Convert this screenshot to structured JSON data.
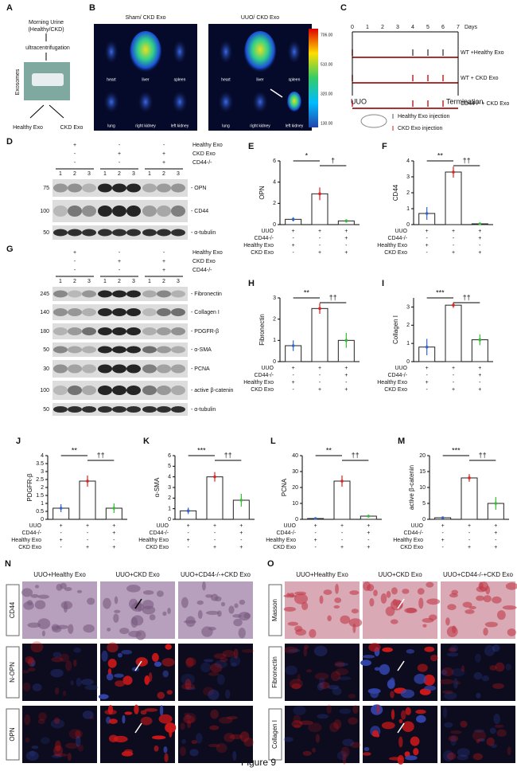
{
  "A": {
    "label": "A",
    "urine": [
      "Morning Urine",
      "(Healthy/CKD)"
    ],
    "step": "ultracentrifugation",
    "side": "Exosomes",
    "outputs": [
      "Healthy Exo",
      "CKD Exo"
    ]
  },
  "B": {
    "label": "B",
    "groups": [
      "Sham/ CKD Exo",
      "UUO/ CKD Exo"
    ],
    "organs": [
      "heart",
      "liver",
      "spleen",
      "lung",
      "right kidney",
      "left kidney"
    ],
    "scale": [
      "706.00",
      "510.00",
      "320.00",
      "130.00"
    ]
  },
  "C": {
    "label": "C",
    "days": [
      "0",
      "1",
      "2",
      "3",
      "4",
      "5",
      "6",
      "7"
    ],
    "days_unit": "Days",
    "groups": [
      "WT +Healthy Exo",
      "WT + CKD Exo",
      "CD44-/- + CKD Exo"
    ],
    "start": "UUO",
    "end": "Termination",
    "legend": [
      "Healthy Exo injection",
      "CKD Exo injection"
    ]
  },
  "D": {
    "label": "D",
    "markers": [
      {
        "mw": "75",
        "name": "- OPN"
      },
      {
        "mw": "100",
        "name": "- CD44"
      },
      {
        "mw": "50",
        "name": "- α-tubulin"
      }
    ]
  },
  "G": {
    "label": "G",
    "markers": [
      {
        "mw": "245",
        "name": "- Fibronectin"
      },
      {
        "mw": "140",
        "name": "- Collagen I"
      },
      {
        "mw": "180",
        "name": "- PDGFR-β"
      },
      {
        "mw": "50",
        "name": "- α-SMA"
      },
      {
        "mw": "30",
        "name": "- PCNA"
      },
      {
        "mw": "100",
        "name": "- active β-catenin"
      },
      {
        "mw": "50",
        "name": "- α-tubulin"
      }
    ]
  },
  "blot_conditions": {
    "labels": [
      "Healthy Exo",
      "CKD Exo",
      "CD44-/-"
    ],
    "signs": [
      [
        "+",
        "-",
        "-"
      ],
      [
        "-",
        "+",
        "+"
      ],
      [
        "-",
        "-",
        "+"
      ]
    ],
    "lanes": [
      "1",
      "2",
      "3"
    ]
  },
  "charts": [
    {
      "label": "E",
      "ylabel": "OPN",
      "ylim": [
        0,
        6
      ],
      "yticks": [
        0,
        2,
        4,
        6
      ],
      "values": [
        0.5,
        2.9,
        0.35
      ],
      "errors": [
        0.2,
        0.6,
        0.15
      ],
      "significance": [
        "*",
        "†"
      ]
    },
    {
      "label": "F",
      "ylabel": "CD44",
      "ylim": [
        0,
        4
      ],
      "yticks": [
        0,
        1,
        2,
        3,
        4
      ],
      "values": [
        0.7,
        3.3,
        0.05
      ],
      "errors": [
        0.4,
        0.35,
        0.05
      ],
      "significance": [
        "**",
        "††"
      ]
    },
    {
      "label": "H",
      "ylabel": "Fibronectin",
      "ylim": [
        0,
        3
      ],
      "yticks": [
        0,
        1,
        2,
        3
      ],
      "values": [
        0.75,
        2.5,
        1.0
      ],
      "errors": [
        0.25,
        0.25,
        0.35
      ],
      "significance": [
        "**",
        "††"
      ]
    },
    {
      "label": "I",
      "ylabel": "Collagen I",
      "ylim": [
        0,
        3.5
      ],
      "yticks": [
        0,
        1,
        2,
        3
      ],
      "values": [
        0.8,
        3.1,
        1.2
      ],
      "errors": [
        0.45,
        0.15,
        0.3
      ],
      "significance": [
        "***",
        "††"
      ]
    },
    {
      "label": "J",
      "ylabel": "PDGFR-β",
      "ylim": [
        0,
        4
      ],
      "yticks": [
        0,
        0.5,
        1,
        1.5,
        2,
        2.5,
        3,
        3.5,
        4
      ],
      "values": [
        0.7,
        2.4,
        0.7
      ],
      "errors": [
        0.25,
        0.35,
        0.3
      ],
      "significance": [
        "**",
        "††"
      ]
    },
    {
      "label": "K",
      "ylabel": "α-SMA",
      "ylim": [
        0,
        6
      ],
      "yticks": [
        0,
        1,
        2,
        3,
        4,
        5,
        6
      ],
      "values": [
        0.8,
        4,
        1.8
      ],
      "errors": [
        0.3,
        0.45,
        0.6
      ],
      "significance": [
        "***",
        "††"
      ]
    },
    {
      "label": "L",
      "ylabel": "PCNA",
      "ylim": [
        0,
        40
      ],
      "yticks": [
        0,
        10,
        20,
        30,
        40
      ],
      "values": [
        0.5,
        24,
        2
      ],
      "errors": [
        0.3,
        3.5,
        0.8
      ],
      "significance": [
        "**",
        "††"
      ]
    },
    {
      "label": "M",
      "ylabel": "active β-catenin",
      "ylim": [
        0,
        20
      ],
      "yticks": [
        0,
        5,
        10,
        15,
        20
      ],
      "values": [
        0.5,
        13,
        5
      ],
      "errors": [
        0.3,
        1.2,
        2
      ],
      "significance": [
        "***",
        "††"
      ]
    }
  ],
  "conditions": {
    "labels": [
      "UUO",
      "CD44-/-",
      "Healthy Exo",
      "CKD Exo"
    ],
    "signs": [
      [
        "+",
        "+",
        "+"
      ],
      [
        "-",
        "-",
        "+"
      ],
      [
        "+",
        "-",
        "-"
      ],
      [
        "-",
        "+",
        "+"
      ]
    ]
  },
  "N": {
    "label": "N",
    "columns": [
      "UUO+Healthy Exo",
      "UUO+CKD Exo",
      "UUO+CD44-/-+CKD Exo"
    ],
    "rows": [
      "CD44",
      "N-OPN",
      "OPN"
    ]
  },
  "O": {
    "label": "O",
    "columns": [
      "UUO+Healthy Exo",
      "UUO+CKD Exo",
      "UUO+CD44-/-+CKD Exo"
    ],
    "rows": [
      "Masson",
      "Fibronectin",
      "Collagen I"
    ]
  },
  "caption": "Figure 9"
}
